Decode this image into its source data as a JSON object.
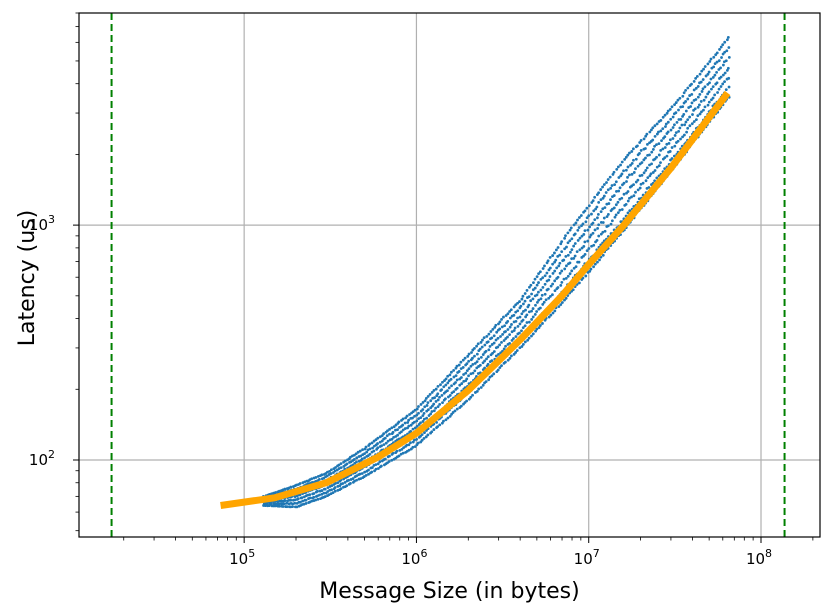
{
  "chart_data": {
    "type": "scatter",
    "title": "",
    "xlabel": "Message Size (in bytes)",
    "ylabel": "Latency (us)",
    "x_scale": "log",
    "y_scale": "log",
    "xlim": [
      11000,
      220000000
    ],
    "ylim": [
      47,
      8000
    ],
    "grid": true,
    "x_ticks": [
      {
        "value": 100000,
        "base": "10",
        "exp": "5"
      },
      {
        "value": 1000000,
        "base": "10",
        "exp": "6"
      },
      {
        "value": 10000000,
        "base": "10",
        "exp": "7"
      },
      {
        "value": 100000000,
        "base": "10",
        "exp": "8"
      }
    ],
    "y_ticks": [
      {
        "value": 100,
        "base": "10",
        "exp": "2"
      },
      {
        "value": 1000,
        "base": "10",
        "exp": "3"
      }
    ],
    "vlines": [
      {
        "x": 17000,
        "color": "#008000",
        "style": "dashed"
      },
      {
        "x": 137000000,
        "color": "#008000",
        "style": "dashed"
      }
    ],
    "series": [
      {
        "kind": "scatter",
        "color": "#1f77b4",
        "x_range": [
          130000,
          65000000
        ],
        "bands": [
          {
            "x": 130000,
            "low": 64,
            "high": 70
          },
          {
            "x": 200000,
            "low": 63,
            "high": 78
          },
          {
            "x": 300000,
            "low": 70,
            "high": 88
          },
          {
            "x": 500000,
            "low": 85,
            "high": 112
          },
          {
            "x": 1000000,
            "low": 115,
            "high": 165
          },
          {
            "x": 2000000,
            "low": 180,
            "high": 280
          },
          {
            "x": 4000000,
            "low": 300,
            "high": 480
          },
          {
            "x": 8000000,
            "low": 520,
            "high": 980
          },
          {
            "x": 16000000,
            "low": 950,
            "high": 1900
          },
          {
            "x": 32000000,
            "low": 1800,
            "high": 3300
          },
          {
            "x": 65000000,
            "low": 3500,
            "high": 6300
          }
        ]
      },
      {
        "kind": "line",
        "color": "#ffa500",
        "points": [
          [
            73000,
            64
          ],
          [
            150000,
            69
          ],
          [
            300000,
            80
          ],
          [
            600000,
            103
          ],
          [
            1000000,
            130
          ],
          [
            2000000,
            198
          ],
          [
            4000000,
            325
          ],
          [
            7000000,
            500
          ],
          [
            10000000,
            680
          ],
          [
            16000000,
            1000
          ],
          [
            30000000,
            1750
          ],
          [
            64000000,
            3650
          ]
        ]
      }
    ]
  }
}
